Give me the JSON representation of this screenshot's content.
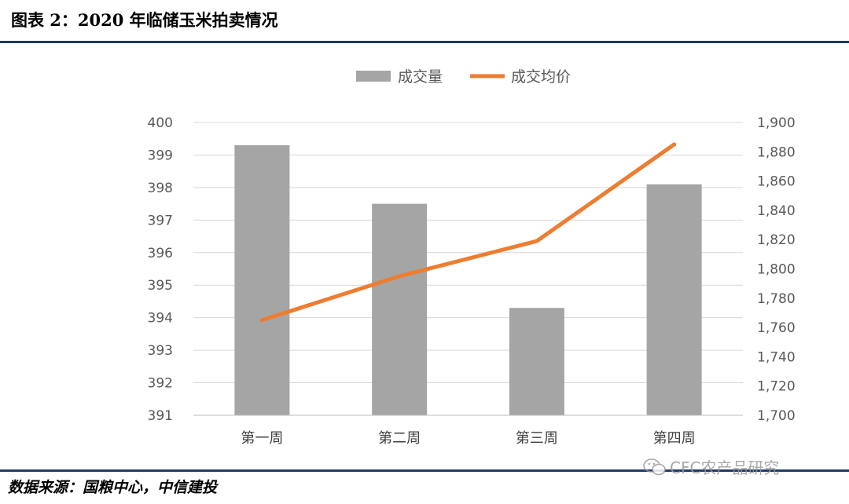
{
  "header": {
    "title": "图表 2：2020 年临储玉米拍卖情况"
  },
  "footer": {
    "source": "数据来源：国粮中心，中信建投",
    "watermark": "CFC农产品研究"
  },
  "colors": {
    "bar": "#a5a5a5",
    "line": "#ed7d31",
    "grid": "#d9d9d9",
    "axis_text": "#595959",
    "rule": "#1f3a6b"
  },
  "chart_data": {
    "type": "bar",
    "categories": [
      "第一周",
      "第二周",
      "第三周",
      "第四周"
    ],
    "series": [
      {
        "name": "成交量",
        "type": "bar",
        "axis": "left",
        "values": [
          399.3,
          397.5,
          394.3,
          398.1
        ]
      },
      {
        "name": "成交均价",
        "type": "line",
        "axis": "right",
        "values": [
          1765,
          1795,
          1819,
          1885
        ]
      }
    ],
    "y_left": {
      "min": 391,
      "max": 400,
      "ticks": [
        "391",
        "392",
        "393",
        "394",
        "395",
        "396",
        "397",
        "398",
        "399",
        "400"
      ]
    },
    "y_right": {
      "min": 1700,
      "max": 1900,
      "ticks": [
        "1,700",
        "1,720",
        "1,740",
        "1,760",
        "1,780",
        "1,800",
        "1,820",
        "1,840",
        "1,860",
        "1,880",
        "1,900"
      ]
    },
    "grid": true,
    "legend_position": "top"
  }
}
